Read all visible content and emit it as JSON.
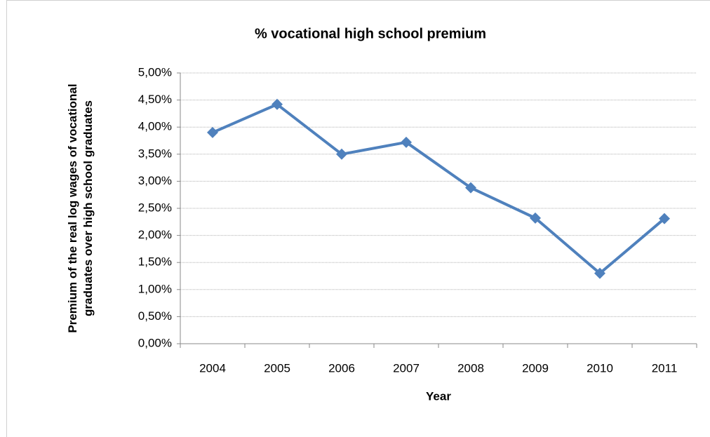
{
  "chart_data": {
    "type": "line",
    "title": "% vocational high school premium",
    "x_label": "Year",
    "y_label": "Premium of the real log wages of vocational graduates over high school graduates",
    "categories": [
      "2004",
      "2005",
      "2006",
      "2007",
      "2008",
      "2009",
      "2010",
      "2011"
    ],
    "values": [
      3.9,
      4.42,
      3.5,
      3.72,
      2.88,
      2.32,
      1.3,
      2.31
    ],
    "color": "#4f81bd",
    "ylim": [
      0,
      5
    ],
    "yticks": [
      {
        "value": 0,
        "label": "0,00%"
      },
      {
        "value": 0.5,
        "label": "0,50%"
      },
      {
        "value": 1,
        "label": "1,00%"
      },
      {
        "value": 1.5,
        "label": "1,50%"
      },
      {
        "value": 2,
        "label": "2,00%"
      },
      {
        "value": 2.5,
        "label": "2,50%"
      },
      {
        "value": 3,
        "label": "3,00%"
      },
      {
        "value": 3.5,
        "label": "3,50%"
      },
      {
        "value": 4,
        "label": "4,00%"
      },
      {
        "value": 4.5,
        "label": "4,50%"
      },
      {
        "value": 5,
        "label": "5,00%"
      }
    ],
    "grid": true
  }
}
